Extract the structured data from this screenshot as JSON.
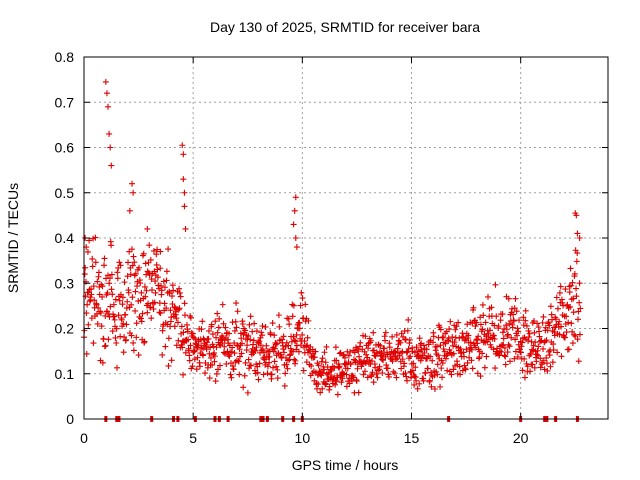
{
  "chart_data": {
    "type": "scatter",
    "title": "Day 130 of 2025, SRMTID for receiver bara",
    "xlabel": "GPS time / hours",
    "ylabel": "SRMTID / TECUs",
    "xlim": [
      0,
      24
    ],
    "ylim": [
      0,
      0.8
    ],
    "xticks": [
      0,
      5,
      10,
      15,
      20
    ],
    "yticks": [
      0,
      0.1,
      0.2,
      0.3,
      0.4,
      0.5,
      0.6,
      0.7,
      0.8
    ],
    "grid": true,
    "marker": "+",
    "color": "#e00000",
    "series": [
      {
        "name": "SRMTID",
        "note": "baseline envelope (hour, typical SRMTID) describing the dense point cloud",
        "baseline": [
          [
            0,
            0.3
          ],
          [
            1,
            0.24
          ],
          [
            2,
            0.26
          ],
          [
            3,
            0.27
          ],
          [
            4,
            0.25
          ],
          [
            5,
            0.15
          ],
          [
            6,
            0.17
          ],
          [
            7,
            0.16
          ],
          [
            8,
            0.14
          ],
          [
            9,
            0.15
          ],
          [
            10,
            0.2
          ],
          [
            10.5,
            0.12
          ],
          [
            11,
            0.1
          ],
          [
            12,
            0.11
          ],
          [
            13,
            0.13
          ],
          [
            14,
            0.14
          ],
          [
            15,
            0.14
          ],
          [
            16,
            0.14
          ],
          [
            17,
            0.16
          ],
          [
            18,
            0.18
          ],
          [
            19,
            0.2
          ],
          [
            20,
            0.18
          ],
          [
            21,
            0.16
          ],
          [
            22,
            0.21
          ],
          [
            22.7,
            0.28
          ]
        ],
        "peaks": [
          {
            "x": 1.0,
            "y": 0.745
          },
          {
            "x": 1.05,
            "y": 0.72
          },
          {
            "x": 1.1,
            "y": 0.69
          },
          {
            "x": 1.15,
            "y": 0.63
          },
          {
            "x": 1.2,
            "y": 0.6
          },
          {
            "x": 1.25,
            "y": 0.56
          },
          {
            "x": 2.2,
            "y": 0.52
          },
          {
            "x": 2.25,
            "y": 0.5
          },
          {
            "x": 2.1,
            "y": 0.46
          },
          {
            "x": 4.5,
            "y": 0.605
          },
          {
            "x": 4.55,
            "y": 0.585
          },
          {
            "x": 4.55,
            "y": 0.53
          },
          {
            "x": 4.6,
            "y": 0.5
          },
          {
            "x": 4.6,
            "y": 0.47
          },
          {
            "x": 4.65,
            "y": 0.42
          },
          {
            "x": 9.7,
            "y": 0.49
          },
          {
            "x": 9.65,
            "y": 0.46
          },
          {
            "x": 9.6,
            "y": 0.43
          },
          {
            "x": 9.7,
            "y": 0.4
          },
          {
            "x": 9.75,
            "y": 0.38
          },
          {
            "x": 0.05,
            "y": 0.4
          },
          {
            "x": 0.1,
            "y": 0.38
          },
          {
            "x": 22.5,
            "y": 0.455
          },
          {
            "x": 22.55,
            "y": 0.45
          },
          {
            "x": 22.6,
            "y": 0.41
          },
          {
            "x": 22.7,
            "y": 0.4
          },
          {
            "x": 3.5,
            "y": 0.37
          },
          {
            "x": 2.9,
            "y": 0.42
          }
        ],
        "zero_hours": [
          1.0,
          1.5,
          1.6,
          3.1,
          4.1,
          4.3,
          5.1,
          6.0,
          6.2,
          6.6,
          8.1,
          8.2,
          8.4,
          9.1,
          9.6,
          10.0,
          16.7,
          20.0,
          21.1,
          21.2,
          21.6,
          22.6
        ]
      }
    ]
  }
}
